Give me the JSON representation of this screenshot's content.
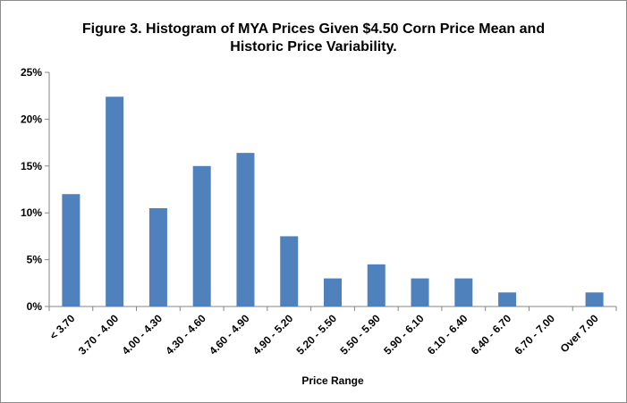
{
  "chart_data": {
    "type": "bar",
    "title_lines": [
      "Figure 3.  Histogram of MYA Prices Given $4.50 Corn Price Mean and",
      "Historic Price Variability."
    ],
    "xlabel": "Price Range",
    "ylabel": "",
    "categories": [
      "< 3.70",
      "3.70 - 4.00",
      "4.00 - 4.30",
      "4.30 - 4.60",
      "4.60 - 4.90",
      "4.90 - 5.20",
      "5.20 - 5.50",
      "5.50 - 5.90",
      "5.90 - 6.10",
      "6.10 - 6.40",
      "6.40 - 6.70",
      "6.70 - 7.00",
      "Over 7.00"
    ],
    "values": [
      12.0,
      22.4,
      10.5,
      15.0,
      16.4,
      7.5,
      3.0,
      4.5,
      3.0,
      3.0,
      1.5,
      0.0,
      1.5
    ],
    "y_ticks": [
      "0%",
      "5%",
      "10%",
      "15%",
      "20%",
      "25%"
    ],
    "ylim": [
      0,
      25
    ],
    "grid": false,
    "legend": "none",
    "bar_color": "#4f81bd"
  }
}
